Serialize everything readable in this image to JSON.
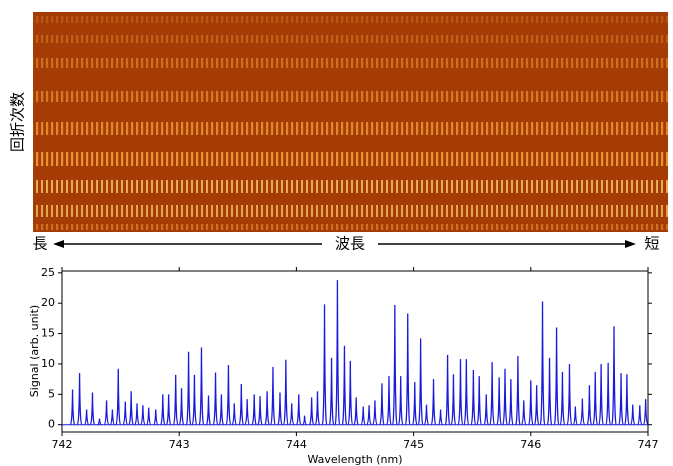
{
  "image_labels": {
    "vertical": "回折次数",
    "left": "長",
    "center": "波長",
    "right": "短"
  },
  "chart_data": {
    "type": "stem",
    "color": "#1a1adb",
    "xlabel": "Wavelength (nm)",
    "ylabel": "Signal (arb. unit)",
    "xlim": [
      742,
      747
    ],
    "ylim": [
      -1.2,
      25.3
    ],
    "xticks": [
      742,
      743,
      744,
      745,
      746,
      747
    ],
    "yticks": [
      0,
      5,
      10,
      15,
      20,
      25
    ],
    "x": [
      742.09,
      742.15,
      742.21,
      742.26,
      742.32,
      742.38,
      742.43,
      742.48,
      742.54,
      742.59,
      742.64,
      742.69,
      742.74,
      742.8,
      742.86,
      742.91,
      742.97,
      743.02,
      743.08,
      743.13,
      743.19,
      743.25,
      743.31,
      743.36,
      743.42,
      743.47,
      743.53,
      743.58,
      743.64,
      743.69,
      743.75,
      743.8,
      743.86,
      743.91,
      743.96,
      744.02,
      744.07,
      744.13,
      744.18,
      744.24,
      744.3,
      744.35,
      744.41,
      744.46,
      744.51,
      744.57,
      744.62,
      744.67,
      744.73,
      744.79,
      744.84,
      744.89,
      744.95,
      745.01,
      745.06,
      745.11,
      745.17,
      745.23,
      745.29,
      745.34,
      745.4,
      745.45,
      745.51,
      745.56,
      745.62,
      745.67,
      745.73,
      745.78,
      745.83,
      745.89,
      745.94,
      746.0,
      746.05,
      746.1,
      746.16,
      746.22,
      746.27,
      746.33,
      746.38,
      746.44,
      746.5,
      746.55,
      746.6,
      746.66,
      746.71,
      746.77,
      746.82,
      746.87,
      746.93,
      746.98
    ],
    "values": [
      5.8,
      8.5,
      2.5,
      5.3,
      1,
      4,
      2.5,
      9.2,
      3.8,
      5.5,
      3.5,
      3.2,
      2.8,
      2.5,
      5,
      5,
      8.2,
      6,
      12,
      8.2,
      12.7,
      4.8,
      8.6,
      5,
      9.8,
      3.5,
      6.7,
      4.2,
      5,
      4.7,
      5.5,
      9.5,
      5.3,
      10.7,
      3.5,
      5,
      1.5,
      4.5,
      5.5,
      19.8,
      11,
      23.8,
      13,
      10.5,
      4.5,
      3,
      3.2,
      4,
      6.8,
      8,
      19.7,
      8,
      18.3,
      7,
      14.2,
      3.3,
      7.5,
      2.5,
      11.5,
      8.3,
      10.8,
      10.8,
      9,
      8,
      5,
      10.3,
      7.8,
      9.2,
      7.5,
      11.3,
      4,
      7.3,
      6.5,
      20.3,
      11,
      16,
      8.7,
      10,
      3,
      4.3,
      6.5,
      8.7,
      10,
      10.2,
      16.2,
      8.5,
      8.3,
      3.3,
      3.2,
      4.2
    ]
  }
}
